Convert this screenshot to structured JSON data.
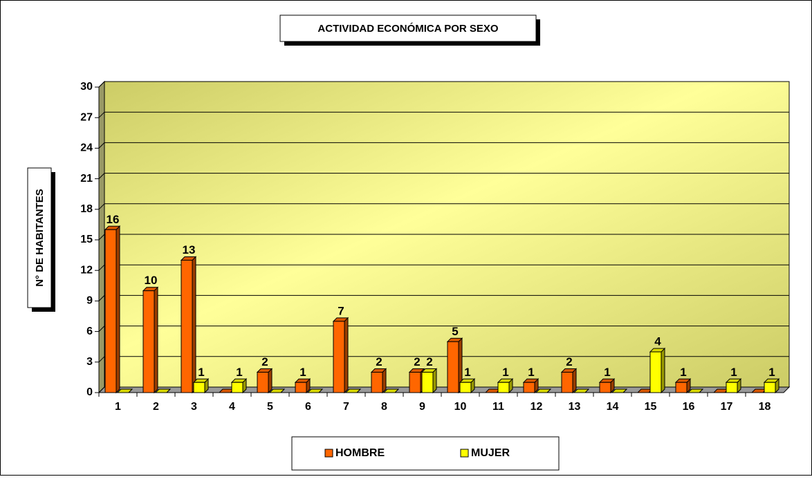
{
  "chart_data": {
    "type": "bar3d",
    "title": "ACTIVIDAD ECONÓMICA POR SEXO",
    "y_label": "N° DE HABITANTES",
    "categories": [
      "1",
      "2",
      "3",
      "4",
      "5",
      "6",
      "7",
      "8",
      "9",
      "10",
      "11",
      "12",
      "13",
      "14",
      "15",
      "16",
      "17",
      "18"
    ],
    "series": [
      {
        "name": "HOMBRE",
        "color": "#ff6600",
        "values": [
          16,
          10,
          13,
          0,
          2,
          1,
          7,
          2,
          2,
          5,
          0,
          1,
          2,
          1,
          0,
          1,
          0,
          0
        ]
      },
      {
        "name": "MUJER",
        "color": "#ffff00",
        "values": [
          0,
          0,
          1,
          1,
          0,
          0,
          0,
          0,
          2,
          1,
          1,
          0,
          0,
          0,
          4,
          0,
          1,
          1
        ]
      }
    ],
    "ylim": [
      0,
      30
    ],
    "yticks": [
      0,
      3,
      6,
      9,
      12,
      15,
      18,
      21,
      24,
      27,
      30
    ],
    "grid": true,
    "legend": "bottom"
  }
}
